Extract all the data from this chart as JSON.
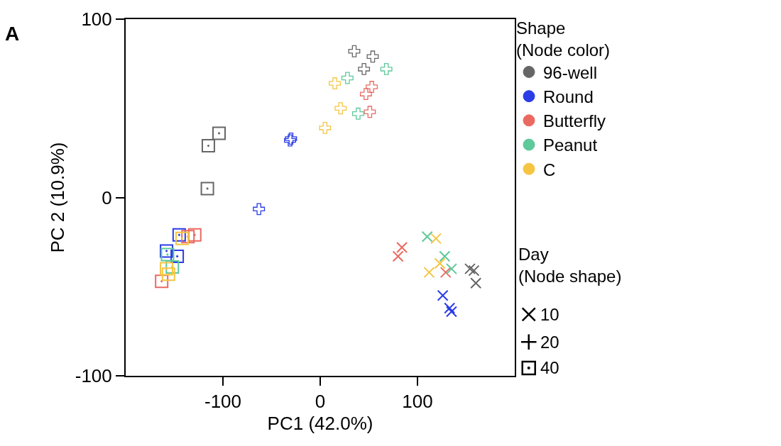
{
  "chart_data": {
    "type": "scatter",
    "title": "A",
    "xlabel": "PC1 (42.0%)",
    "ylabel": "PC 2 (10.9%)",
    "xlim": [
      -200,
      200
    ],
    "xticks": [
      -100,
      0,
      100
    ],
    "ylim": [
      -100,
      100
    ],
    "yticks": [
      -100,
      0,
      100
    ],
    "legend": "right",
    "legend_title": "Shape\n(Node color)",
    "series": [
      {
        "name": "96-well",
        "color": "#666666",
        "marker": [
          "square",
          "square",
          "square",
          "plus",
          "plus",
          "plus",
          "x",
          "x",
          "x"
        ],
        "x": [
          -104,
          -115,
          -116,
          35,
          54,
          45,
          154,
          158,
          160
        ],
        "values": [
          36,
          29,
          5,
          82,
          79,
          72,
          -40,
          -41,
          -48
        ]
      },
      {
        "name": "Round",
        "color": "#2b3de6",
        "marker": [
          "square",
          "square",
          "square",
          "plus",
          "plus",
          "plus",
          "x",
          "x",
          "x"
        ],
        "x": [
          -145,
          -158,
          -147,
          -31,
          -30,
          -63,
          126,
          133,
          135
        ],
        "values": [
          -21,
          -30,
          -33,
          32,
          33,
          -6.5,
          -55,
          -62,
          -64
        ]
      },
      {
        "name": "Butterfly",
        "color": "#ea6a62",
        "marker": [
          "square",
          "square",
          "square",
          "plus",
          "plus",
          "plus",
          "x",
          "x",
          "x"
        ],
        "x": [
          -129,
          -136,
          -163,
          53,
          47,
          51,
          84,
          80,
          129
        ],
        "values": [
          -21,
          -22,
          -47,
          62,
          58,
          48,
          -28,
          -33,
          -42
        ]
      },
      {
        "name": "Peanut",
        "color": "#5ec99a",
        "marker": [
          "square",
          "square",
          "plus",
          "plus",
          "plus",
          "x",
          "x",
          "x"
        ],
        "x": [
          -152,
          -157,
          68,
          28,
          39,
          110,
          128,
          135
        ],
        "values": [
          -39,
          -32,
          72,
          67,
          47,
          -22,
          -33,
          -40
        ]
      },
      {
        "name": "C",
        "color": "#f5c542",
        "marker": [
          "square",
          "square",
          "square",
          "plus",
          "plus",
          "plus",
          "x",
          "x",
          "x"
        ],
        "x": [
          -142,
          -158,
          -156,
          15,
          21,
          5,
          119,
          112,
          123
        ],
        "values": [
          -23,
          -40,
          -43,
          64,
          50,
          39,
          -23,
          -42,
          -37
        ]
      }
    ],
    "annotations": [
      "Day\n(Node shape)",
      "10",
      "20",
      "40"
    ]
  }
}
